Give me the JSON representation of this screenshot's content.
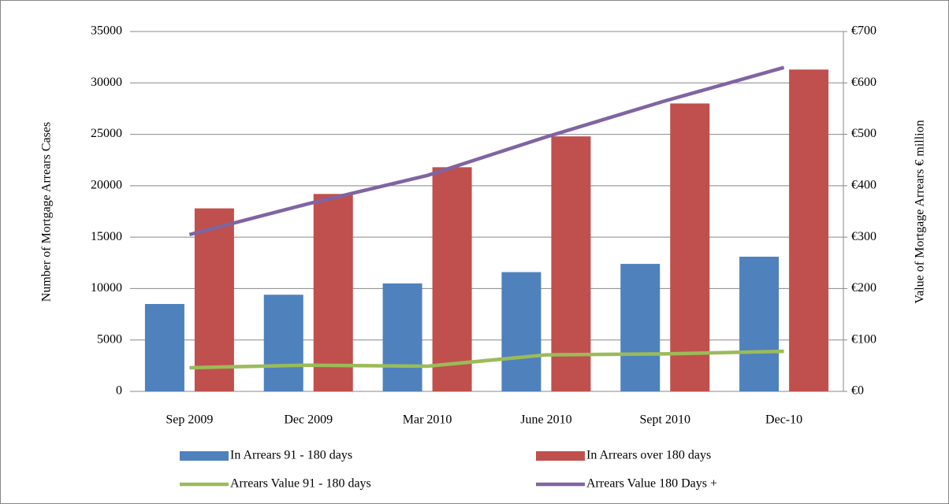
{
  "chart_data": {
    "type": "bar_line",
    "categories": [
      "Sep 2009",
      "Dec 2009",
      "Mar 2010",
      "June 2010",
      "Sept 2010",
      "Dec-10"
    ],
    "y_label": "Number of Mortgage Arrears Cases",
    "y2_label": "Value of Mortgage Arrears €  million",
    "ylim": [
      0,
      35000
    ],
    "yticks": [
      0,
      5000,
      10000,
      15000,
      20000,
      25000,
      30000,
      35000
    ],
    "y2lim": [
      0,
      700
    ],
    "y2ticks": [
      {
        "value": 0,
        "label": "€0"
      },
      {
        "value": 100,
        "label": "€100"
      },
      {
        "value": 200,
        "label": "€200"
      },
      {
        "value": 300,
        "label": "€300"
      },
      {
        "value": 400,
        "label": "€400"
      },
      {
        "value": 500,
        "label": "€500"
      },
      {
        "value": 600,
        "label": "€600"
      },
      {
        "value": 700,
        "label": "€700"
      }
    ],
    "grid": true,
    "series": [
      {
        "name": "In Arrears 91 - 180 days",
        "type": "bar",
        "color": "#4f81bd",
        "values": [
          8500,
          9400,
          10500,
          11600,
          12400,
          13100
        ]
      },
      {
        "name": "In Arrears over 180 days",
        "type": "bar",
        "color": "#c0504d",
        "values": [
          17800,
          19200,
          21800,
          24800,
          28000,
          31300
        ]
      },
      {
        "name": "Arrears Value 91 - 180 days",
        "type": "line",
        "axis": "y2",
        "color": "#9bbb59",
        "values": [
          46,
          51,
          49,
          71,
          73,
          78
        ]
      },
      {
        "name": "Arrears Value 180 Days +",
        "type": "line",
        "axis": "y2",
        "color": "#8064a2",
        "values": [
          305,
          365,
          420,
          495,
          565,
          630
        ]
      }
    ]
  }
}
